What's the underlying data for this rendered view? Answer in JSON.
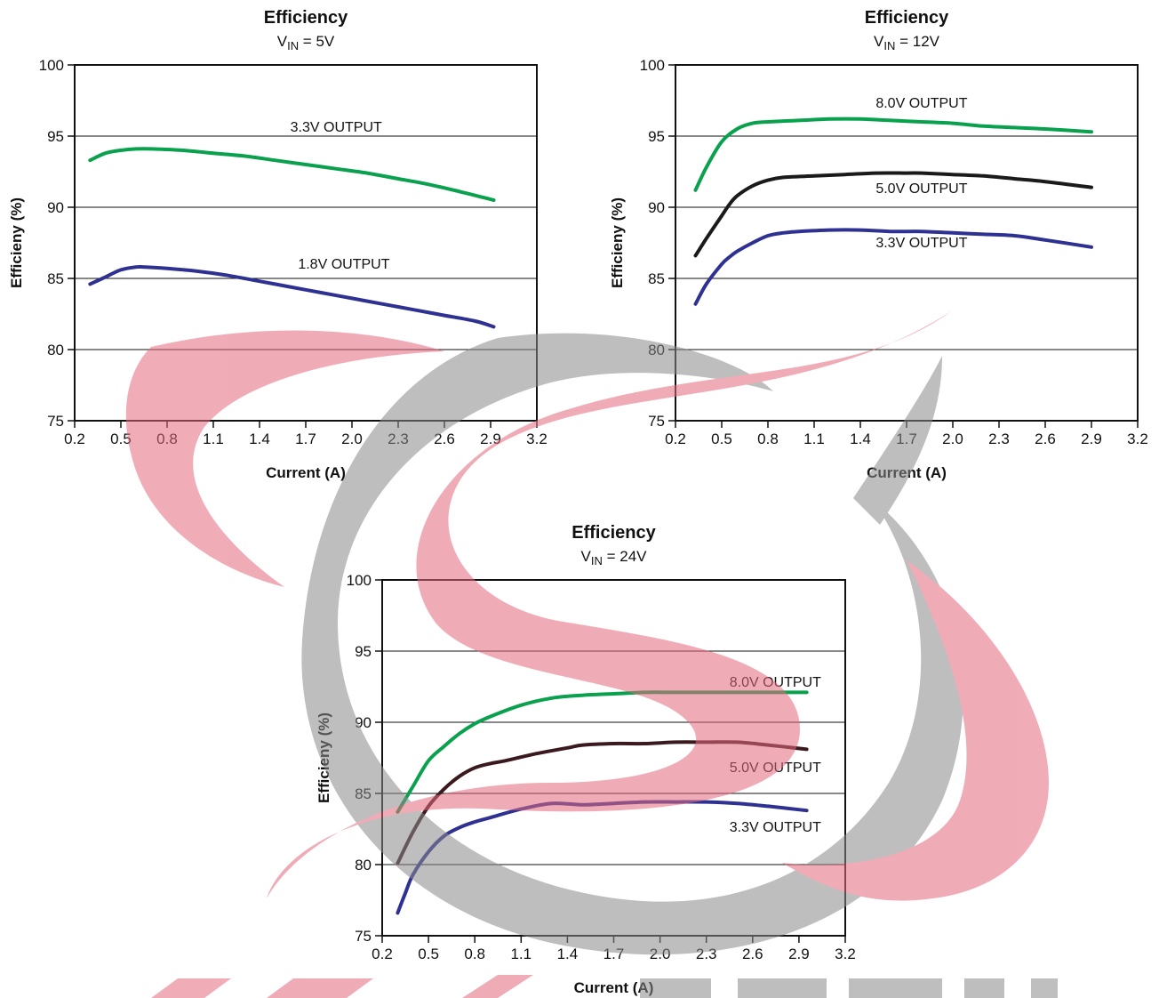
{
  "watermark": {
    "colors": {
      "red": "#e36a7e",
      "gray": "#8a8a8a"
    }
  },
  "chart_data": [
    {
      "type": "line",
      "title": "Efficiency",
      "subtitle": {
        "main": "V",
        "sub": "IN",
        "rest": " = 5V"
      },
      "xlabel": "Current (A)",
      "ylabel": "Efficieny (%)",
      "xlim": [
        0.2,
        3.2
      ],
      "ylim": [
        75,
        100
      ],
      "xticks": [
        "0.2",
        "0.5",
        "0.8",
        "1.1",
        "1.4",
        "1.7",
        "2.0",
        "2.3",
        "2.6",
        "2.9",
        "3.2"
      ],
      "yticks": [
        "75",
        "80",
        "85",
        "90",
        "95",
        "100"
      ],
      "grid": true,
      "series": [
        {
          "name": "3.3V OUTPUT",
          "color": "#0aa14e",
          "x": [
            0.3,
            0.4,
            0.5,
            0.6,
            0.7,
            0.9,
            1.1,
            1.3,
            1.5,
            1.7,
            1.9,
            2.1,
            2.3,
            2.5,
            2.7,
            2.92
          ],
          "y": [
            93.3,
            93.8,
            94.0,
            94.1,
            94.1,
            94.0,
            93.8,
            93.6,
            93.3,
            93.0,
            92.7,
            92.4,
            92.0,
            91.6,
            91.1,
            90.5
          ],
          "label_at": [
            1.6,
            95.3
          ]
        },
        {
          "name": "1.8V OUTPUT",
          "color": "#2e3192",
          "x": [
            0.3,
            0.4,
            0.5,
            0.6,
            0.65,
            0.8,
            1.0,
            1.2,
            1.4,
            1.6,
            1.8,
            2.0,
            2.2,
            2.4,
            2.6,
            2.8,
            2.92
          ],
          "y": [
            84.6,
            85.1,
            85.6,
            85.8,
            85.8,
            85.7,
            85.5,
            85.2,
            84.8,
            84.4,
            84.0,
            83.6,
            83.2,
            82.8,
            82.4,
            82.0,
            81.6
          ],
          "label_at": [
            1.65,
            85.7
          ]
        }
      ]
    },
    {
      "type": "line",
      "title": "Efficiency",
      "subtitle": {
        "main": "V",
        "sub": "IN",
        "rest": " = 12V"
      },
      "xlabel": "Current (A)",
      "ylabel": "Efficieny (%)",
      "xlim": [
        0.2,
        3.2
      ],
      "ylim": [
        75,
        100
      ],
      "xticks": [
        "0.2",
        "0.5",
        "0.8",
        "1.1",
        "1.4",
        "1.7",
        "2.0",
        "2.3",
        "2.6",
        "2.9",
        "3.2"
      ],
      "yticks": [
        "75",
        "80",
        "85",
        "90",
        "95",
        "100"
      ],
      "grid": true,
      "series": [
        {
          "name": "8.0V OUTPUT",
          "color": "#0aa14e",
          "x": [
            0.33,
            0.4,
            0.5,
            0.6,
            0.7,
            0.8,
            1.0,
            1.2,
            1.4,
            1.6,
            1.8,
            2.0,
            2.2,
            2.4,
            2.6,
            2.9
          ],
          "y": [
            91.2,
            92.8,
            94.6,
            95.5,
            95.9,
            96.0,
            96.1,
            96.2,
            96.2,
            96.1,
            96.0,
            95.9,
            95.7,
            95.6,
            95.5,
            95.3
          ],
          "label_at": [
            1.5,
            97.0
          ]
        },
        {
          "name": "5.0V OUTPUT",
          "color": "#1a1a1a",
          "x": [
            0.33,
            0.4,
            0.5,
            0.55,
            0.6,
            0.7,
            0.8,
            0.9,
            1.1,
            1.3,
            1.5,
            1.7,
            1.8,
            2.0,
            2.2,
            2.4,
            2.6,
            2.9
          ],
          "y": [
            86.6,
            87.8,
            89.4,
            90.2,
            90.8,
            91.5,
            91.9,
            92.1,
            92.2,
            92.3,
            92.4,
            92.4,
            92.4,
            92.3,
            92.2,
            92.0,
            91.8,
            91.4
          ],
          "label_at": [
            1.5,
            91.0
          ]
        },
        {
          "name": "3.3V OUTPUT",
          "color": "#2e3192",
          "x": [
            0.33,
            0.4,
            0.5,
            0.55,
            0.6,
            0.7,
            0.8,
            0.9,
            1.0,
            1.2,
            1.4,
            1.6,
            1.8,
            2.0,
            2.2,
            2.4,
            2.6,
            2.9
          ],
          "y": [
            83.2,
            84.6,
            86.0,
            86.5,
            86.9,
            87.5,
            88.0,
            88.2,
            88.3,
            88.4,
            88.4,
            88.3,
            88.3,
            88.2,
            88.1,
            88.0,
            87.7,
            87.2
          ],
          "label_at": [
            1.5,
            87.2
          ]
        }
      ]
    },
    {
      "type": "line",
      "title": "Efficiency",
      "subtitle": {
        "main": "V",
        "sub": "IN",
        "rest": " = 24V"
      },
      "xlabel": "Current (A)",
      "ylabel": "Efficieny (%)",
      "xlim": [
        0.2,
        3.2
      ],
      "ylim": [
        75,
        100
      ],
      "xticks": [
        "0.2",
        "0.5",
        "0.8",
        "1.1",
        "1.4",
        "1.7",
        "2.0",
        "2.3",
        "2.6",
        "2.9",
        "3.2"
      ],
      "yticks": [
        "75",
        "80",
        "85",
        "90",
        "95",
        "100"
      ],
      "grid": true,
      "series": [
        {
          "name": "8.0V OUTPUT",
          "color": "#0aa14e",
          "x": [
            0.3,
            0.4,
            0.5,
            0.6,
            0.7,
            0.8,
            0.9,
            1.1,
            1.3,
            1.5,
            1.7,
            1.9,
            2.1,
            2.3,
            2.5,
            2.7,
            2.95
          ],
          "y": [
            83.7,
            85.5,
            87.3,
            88.3,
            89.2,
            89.9,
            90.4,
            91.2,
            91.7,
            91.9,
            92.0,
            92.1,
            92.1,
            92.1,
            92.1,
            92.1,
            92.1
          ],
          "label_at": [
            2.45,
            92.5
          ]
        },
        {
          "name": "5.0V OUTPUT",
          "color": "#3b1a1f",
          "x": [
            0.3,
            0.4,
            0.5,
            0.6,
            0.7,
            0.8,
            0.9,
            1.0,
            1.2,
            1.4,
            1.5,
            1.7,
            1.9,
            2.1,
            2.3,
            2.5,
            2.7,
            2.95
          ],
          "y": [
            80.1,
            82.3,
            84.1,
            85.3,
            86.2,
            86.8,
            87.1,
            87.3,
            87.8,
            88.2,
            88.4,
            88.5,
            88.5,
            88.6,
            88.6,
            88.6,
            88.4,
            88.1
          ],
          "label_at": [
            2.45,
            86.5
          ]
        },
        {
          "name": "3.3V OUTPUT",
          "color": "#2e3192",
          "x": [
            0.3,
            0.35,
            0.4,
            0.5,
            0.6,
            0.7,
            0.8,
            0.9,
            1.1,
            1.3,
            1.5,
            1.7,
            1.9,
            2.1,
            2.3,
            2.5,
            2.7,
            2.95
          ],
          "y": [
            76.6,
            78.0,
            79.3,
            80.9,
            82.0,
            82.6,
            83.0,
            83.3,
            83.9,
            84.3,
            84.2,
            84.3,
            84.4,
            84.4,
            84.4,
            84.3,
            84.1,
            83.8
          ],
          "label_at": [
            2.45,
            82.3
          ]
        }
      ]
    }
  ]
}
